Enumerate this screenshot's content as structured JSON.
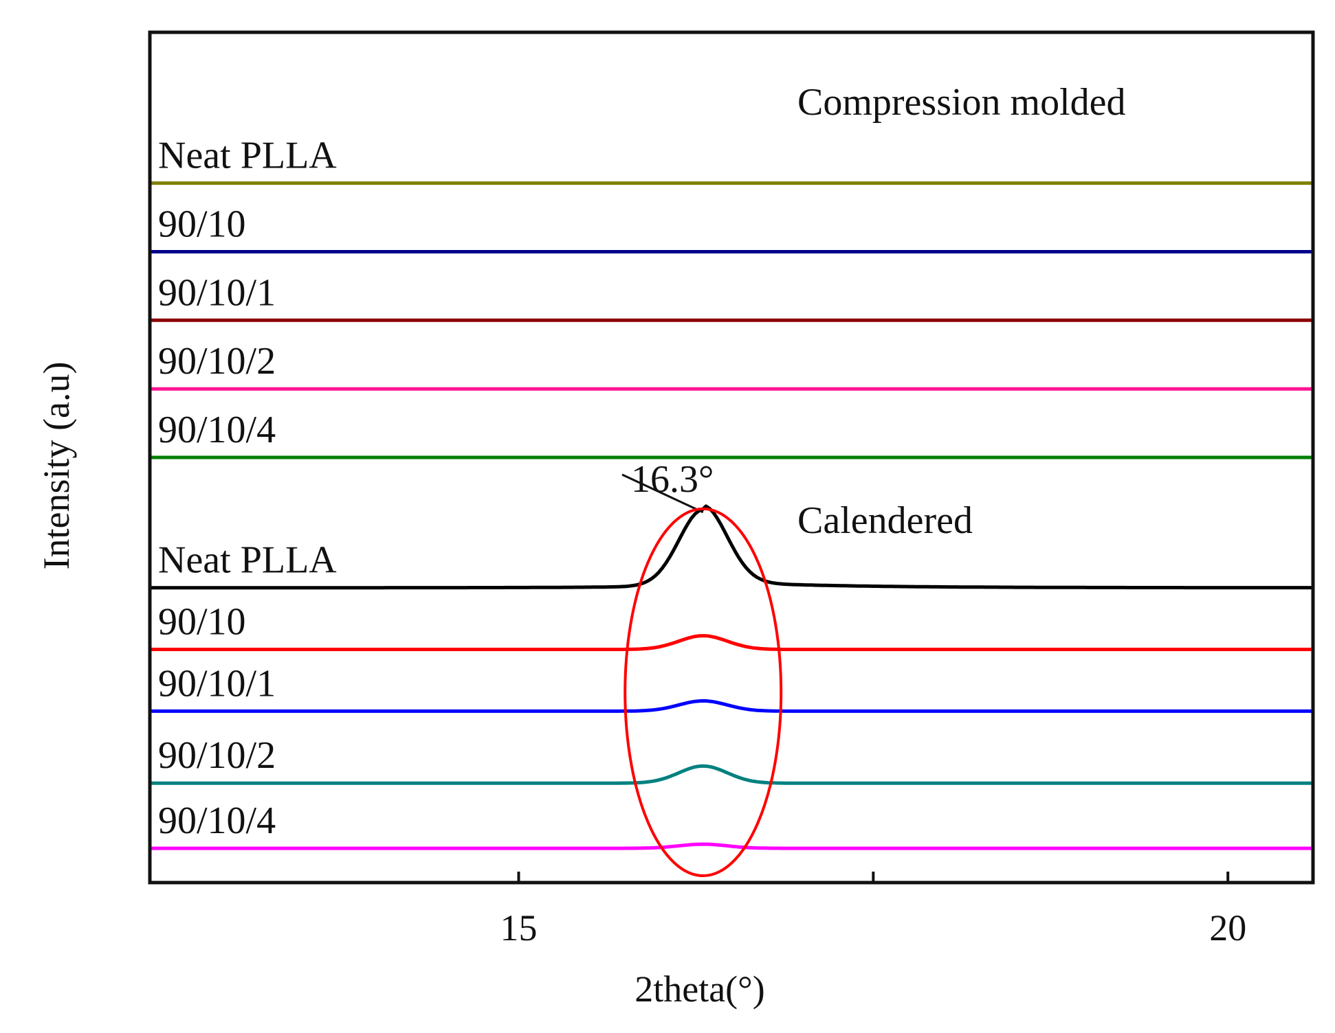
{
  "chart_data": {
    "type": "line",
    "title": "",
    "xlabel": "2theta(°)",
    "ylabel": "Intensity (a.u)",
    "xlim": [
      12.4,
      20.6
    ],
    "x_ticks": [
      {
        "value": 15,
        "label": "15"
      },
      {
        "value": 17.5,
        "label": ""
      },
      {
        "value": 20,
        "label": "20"
      }
    ],
    "y_ticks": "none",
    "grid": false,
    "legend": "inline labels above each trace",
    "groups": [
      {
        "name": "Compression molded",
        "label": "Compression molded"
      },
      {
        "name": "Calendered",
        "label": "Calendered"
      }
    ],
    "series": [
      {
        "name": "Neat PLLA",
        "group": "Compression molded",
        "color": "#808000",
        "offset": 10.0,
        "peak_height": 0
      },
      {
        "name": "90/10",
        "group": "Compression molded",
        "color": "#00008b",
        "offset": 9.0,
        "peak_height": 0
      },
      {
        "name": "90/10/1",
        "group": "Compression molded",
        "color": "#8b0000",
        "offset": 8.0,
        "peak_height": 0
      },
      {
        "name": "90/10/2",
        "group": "Compression molded",
        "color": "#ff1493",
        "offset": 7.0,
        "peak_height": 0
      },
      {
        "name": "90/10/4",
        "group": "Compression molded",
        "color": "#008000",
        "offset": 6.0,
        "peak_height": 0
      },
      {
        "name": "Neat PLLA",
        "group": "Calendered",
        "color": "#000000",
        "offset": 4.1,
        "peak_height": 1.1
      },
      {
        "name": "90/10",
        "group": "Calendered",
        "color": "#ff0000",
        "offset": 3.2,
        "peak_height": 0.2
      },
      {
        "name": "90/10/1",
        "group": "Calendered",
        "color": "#0000ff",
        "offset": 2.3,
        "peak_height": 0.15
      },
      {
        "name": "90/10/2",
        "group": "Calendered",
        "color": "#008080",
        "offset": 1.25,
        "peak_height": 0.25
      },
      {
        "name": "90/10/4",
        "group": "Calendered",
        "color": "#ff00ff",
        "offset": 0.3,
        "peak_height": 0.06
      }
    ],
    "peak_center": 16.3,
    "peak_sigma": 0.17,
    "annotations": [
      {
        "text": "16.3°",
        "x": 16.3,
        "target": "Calendered Neat PLLA peak"
      },
      {
        "text": "",
        "shape": "ellipse",
        "x_center": 16.3,
        "x_half_width": 0.55,
        "color": "#ff0000",
        "note": "circles 16.3° peaks of calendered samples"
      }
    ],
    "ylim": [
      -0.2,
      12.2
    ]
  }
}
